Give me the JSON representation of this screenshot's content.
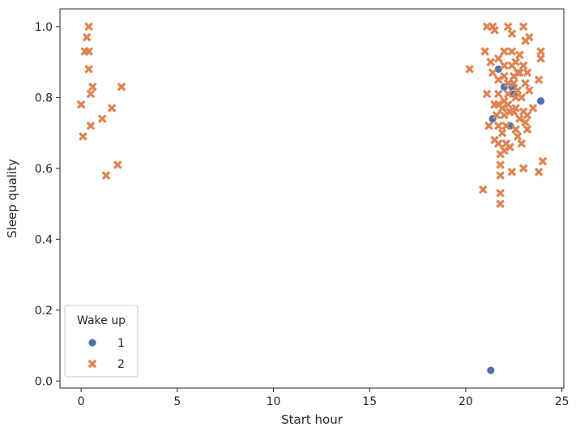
{
  "chart_data": {
    "type": "scatter",
    "title": "",
    "xlabel": "Start hour",
    "ylabel": "Sleep quality",
    "xlim": [
      -1.1,
      25.1
    ],
    "ylim": [
      -0.02,
      1.05
    ],
    "xticks": [
      0,
      5,
      10,
      15,
      20,
      25
    ],
    "xtick_labels": [
      "0",
      "5",
      "10",
      "15",
      "20",
      "25"
    ],
    "yticks": [
      0.0,
      0.2,
      0.4,
      0.6,
      0.8,
      1.0
    ],
    "ytick_labels": [
      "0.0",
      "0.2",
      "0.4",
      "0.6",
      "0.8",
      "1.0"
    ],
    "grid": false,
    "legend": {
      "title": "Wake up",
      "placement": "bottom-left",
      "entries": [
        {
          "label": "1",
          "marker": "circle",
          "color": "#4c72b0"
        },
        {
          "label": "2",
          "marker": "x",
          "color": "#dd8452"
        }
      ]
    },
    "series": [
      {
        "name": "1",
        "marker": "circle",
        "color": "#4c72b0",
        "points": [
          [
            21.3,
            0.03
          ],
          [
            21.4,
            0.74
          ],
          [
            21.7,
            0.88
          ],
          [
            22.0,
            0.83
          ],
          [
            22.3,
            0.72
          ],
          [
            22.4,
            0.83
          ],
          [
            22.5,
            0.81
          ],
          [
            23.9,
            0.79
          ]
        ]
      },
      {
        "name": "2",
        "marker": "x",
        "color": "#dd8452",
        "points": [
          [
            0.0,
            0.78
          ],
          [
            0.1,
            0.69
          ],
          [
            0.2,
            0.93
          ],
          [
            0.3,
            0.97
          ],
          [
            0.4,
            0.93
          ],
          [
            0.4,
            1.0
          ],
          [
            0.4,
            0.88
          ],
          [
            0.5,
            0.81
          ],
          [
            0.5,
            0.72
          ],
          [
            0.6,
            0.83
          ],
          [
            1.1,
            0.74
          ],
          [
            1.3,
            0.58
          ],
          [
            1.6,
            0.77
          ],
          [
            1.9,
            0.61
          ],
          [
            2.1,
            0.83
          ],
          [
            20.2,
            0.88
          ],
          [
            20.9,
            0.54
          ],
          [
            21.0,
            0.93
          ],
          [
            21.1,
            0.81
          ],
          [
            21.1,
            1.0
          ],
          [
            21.2,
            0.72
          ],
          [
            21.3,
            0.9
          ],
          [
            21.4,
            0.87
          ],
          [
            21.4,
            1.0
          ],
          [
            21.5,
            0.99
          ],
          [
            21.5,
            0.78
          ],
          [
            21.5,
            0.68
          ],
          [
            21.6,
            0.75
          ],
          [
            21.7,
            0.91
          ],
          [
            21.7,
            0.85
          ],
          [
            21.7,
            0.81
          ],
          [
            21.7,
            0.78
          ],
          [
            21.7,
            0.72
          ],
          [
            21.7,
            0.67
          ],
          [
            21.8,
            0.64
          ],
          [
            21.8,
            0.61
          ],
          [
            21.8,
            0.58
          ],
          [
            21.8,
            0.53
          ],
          [
            21.8,
            0.5
          ],
          [
            21.9,
            0.77
          ],
          [
            21.9,
            0.7
          ],
          [
            22.0,
            0.93
          ],
          [
            22.0,
            0.89
          ],
          [
            22.0,
            0.86
          ],
          [
            22.0,
            0.79
          ],
          [
            22.0,
            0.75
          ],
          [
            22.0,
            0.65
          ],
          [
            22.1,
            0.72
          ],
          [
            22.1,
            0.67
          ],
          [
            22.2,
            1.0
          ],
          [
            22.2,
            0.84
          ],
          [
            22.2,
            0.81
          ],
          [
            22.2,
            0.78
          ],
          [
            22.3,
            0.76
          ],
          [
            22.3,
            0.66
          ],
          [
            22.4,
            0.98
          ],
          [
            22.4,
            0.93
          ],
          [
            22.4,
            0.89
          ],
          [
            22.4,
            0.59
          ],
          [
            22.5,
            0.86
          ],
          [
            22.5,
            0.84
          ],
          [
            22.5,
            0.76
          ],
          [
            22.6,
            0.9
          ],
          [
            22.6,
            0.8
          ],
          [
            22.6,
            0.77
          ],
          [
            22.6,
            0.71
          ],
          [
            22.7,
            0.87
          ],
          [
            22.7,
            0.82
          ],
          [
            22.7,
            0.69
          ],
          [
            22.8,
            0.92
          ],
          [
            22.8,
            0.87
          ],
          [
            22.8,
            0.74
          ],
          [
            22.9,
            0.8
          ],
          [
            22.9,
            0.67
          ],
          [
            23.0,
            1.0
          ],
          [
            23.0,
            0.89
          ],
          [
            23.0,
            0.76
          ],
          [
            23.0,
            0.6
          ],
          [
            23.1,
            0.96
          ],
          [
            23.1,
            0.84
          ],
          [
            23.1,
            0.73
          ],
          [
            23.2,
            0.87
          ],
          [
            23.2,
            0.75
          ],
          [
            23.2,
            0.71
          ],
          [
            23.3,
            0.97
          ],
          [
            23.3,
            0.82
          ],
          [
            23.5,
            0.77
          ],
          [
            23.8,
            0.85
          ],
          [
            23.8,
            0.59
          ],
          [
            23.9,
            0.93
          ],
          [
            23.9,
            0.91
          ],
          [
            24.0,
            0.62
          ]
        ]
      }
    ]
  }
}
